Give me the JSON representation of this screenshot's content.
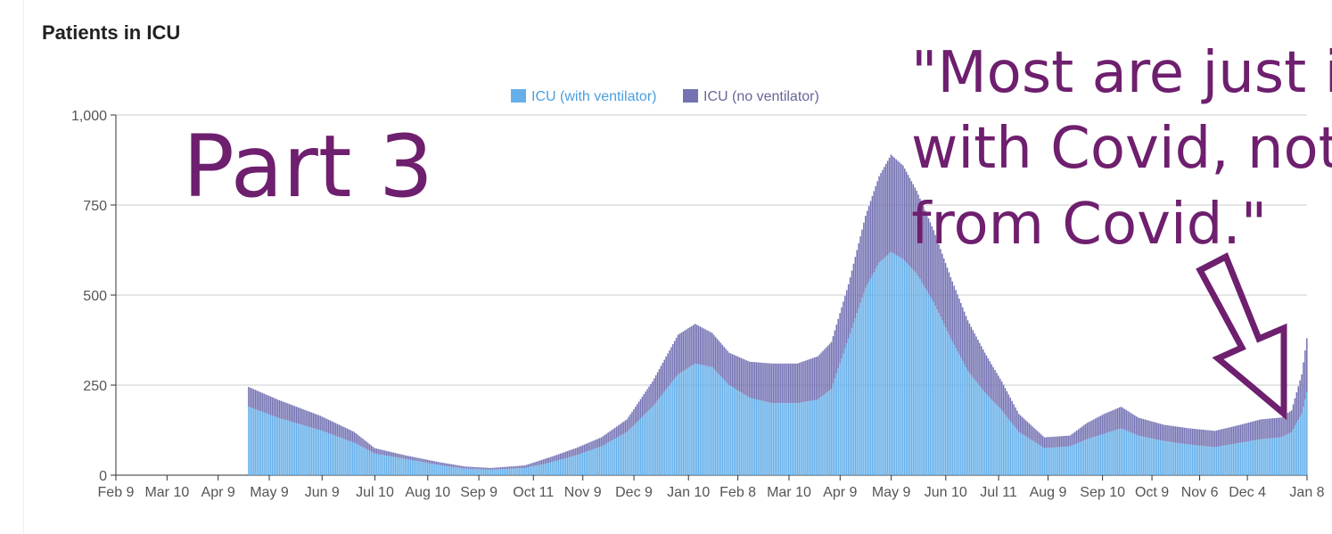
{
  "chart_data": {
    "type": "bar",
    "stacked": true,
    "title": "Patients in ICU",
    "ylim": [
      0,
      1000
    ],
    "yticks": [
      "0",
      "250",
      "500",
      "750",
      "1,000"
    ],
    "ytick_values": [
      0,
      250,
      500,
      750,
      1000
    ],
    "xticks": [
      "Feb 9",
      "Mar 10",
      "Apr 9",
      "May 9",
      "Jun 9",
      "Jul 10",
      "Aug 10",
      "Sep 9",
      "Oct 11",
      "Nov 9",
      "Dec 9",
      "Jan 10",
      "Feb 8",
      "Mar 10",
      "Apr 9",
      "May 9",
      "Jun 10",
      "Jul 11",
      "Aug 9",
      "Sep 10",
      "Oct 9",
      "Nov 6",
      "Dec 4",
      "Jan 8"
    ],
    "xtick_day_index": [
      0,
      30,
      60,
      90,
      121,
      152,
      183,
      213,
      245,
      274,
      304,
      336,
      365,
      395,
      425,
      455,
      487,
      518,
      547,
      579,
      608,
      636,
      664,
      699
    ],
    "x_range_days": [
      0,
      699
    ],
    "legend_position": "top",
    "grid": true,
    "series": [
      {
        "name": "ICU (with ventilator)",
        "color": "#66b0ea",
        "points": [
          [
            78,
            190
          ],
          [
            95,
            160
          ],
          [
            120,
            125
          ],
          [
            140,
            90
          ],
          [
            152,
            60
          ],
          [
            170,
            45
          ],
          [
            190,
            28
          ],
          [
            205,
            18
          ],
          [
            220,
            15
          ],
          [
            240,
            20
          ],
          [
            255,
            35
          ],
          [
            270,
            55
          ],
          [
            285,
            80
          ],
          [
            300,
            120
          ],
          [
            315,
            190
          ],
          [
            330,
            280
          ],
          [
            340,
            310
          ],
          [
            350,
            300
          ],
          [
            360,
            250
          ],
          [
            372,
            215
          ],
          [
            385,
            200
          ],
          [
            400,
            200
          ],
          [
            412,
            210
          ],
          [
            420,
            240
          ],
          [
            430,
            380
          ],
          [
            440,
            520
          ],
          [
            448,
            590
          ],
          [
            455,
            620
          ],
          [
            462,
            600
          ],
          [
            470,
            560
          ],
          [
            480,
            480
          ],
          [
            490,
            380
          ],
          [
            500,
            290
          ],
          [
            510,
            230
          ],
          [
            520,
            180
          ],
          [
            530,
            120
          ],
          [
            545,
            75
          ],
          [
            560,
            80
          ],
          [
            570,
            100
          ],
          [
            580,
            115
          ],
          [
            590,
            130
          ],
          [
            600,
            110
          ],
          [
            615,
            95
          ],
          [
            630,
            85
          ],
          [
            645,
            78
          ],
          [
            660,
            90
          ],
          [
            672,
            100
          ],
          [
            684,
            105
          ],
          [
            690,
            120
          ],
          [
            696,
            170
          ],
          [
            699,
            230
          ]
        ]
      },
      {
        "name": "ICU (no ventilator)",
        "color": "#7472b3",
        "points": [
          [
            78,
            55
          ],
          [
            95,
            50
          ],
          [
            120,
            40
          ],
          [
            140,
            30
          ],
          [
            152,
            15
          ],
          [
            170,
            10
          ],
          [
            190,
            8
          ],
          [
            205,
            6
          ],
          [
            220,
            5
          ],
          [
            240,
            7
          ],
          [
            255,
            15
          ],
          [
            270,
            20
          ],
          [
            285,
            25
          ],
          [
            300,
            35
          ],
          [
            315,
            70
          ],
          [
            330,
            110
          ],
          [
            340,
            110
          ],
          [
            350,
            95
          ],
          [
            360,
            90
          ],
          [
            372,
            100
          ],
          [
            385,
            110
          ],
          [
            400,
            110
          ],
          [
            412,
            120
          ],
          [
            420,
            130
          ],
          [
            430,
            150
          ],
          [
            440,
            200
          ],
          [
            448,
            240
          ],
          [
            455,
            270
          ],
          [
            462,
            260
          ],
          [
            470,
            230
          ],
          [
            480,
            200
          ],
          [
            490,
            170
          ],
          [
            500,
            140
          ],
          [
            510,
            110
          ],
          [
            520,
            80
          ],
          [
            530,
            50
          ],
          [
            545,
            30
          ],
          [
            560,
            30
          ],
          [
            570,
            45
          ],
          [
            580,
            55
          ],
          [
            590,
            60
          ],
          [
            600,
            50
          ],
          [
            615,
            45
          ],
          [
            630,
            45
          ],
          [
            645,
            45
          ],
          [
            660,
            50
          ],
          [
            672,
            55
          ],
          [
            684,
            55
          ],
          [
            690,
            60
          ],
          [
            696,
            110
          ],
          [
            699,
            150
          ]
        ]
      }
    ]
  },
  "overlay": {
    "part_label": "Part 3",
    "quote_lines": [
      "\"Most are just in",
      "with Covid, not",
      "from Covid.\""
    ]
  }
}
